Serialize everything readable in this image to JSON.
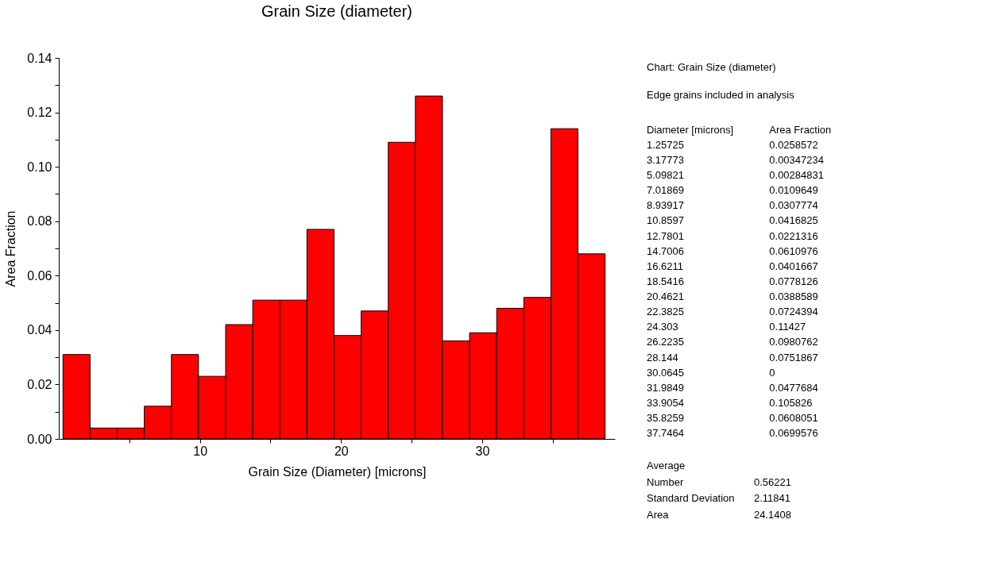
{
  "chart_data": {
    "type": "histogram",
    "title": "Grain Size (diameter)",
    "xlabel": "Grain Size (Diameter) [microns]",
    "ylabel": "Area Fraction",
    "bins": [
      0.297,
      2.217,
      4.138,
      6.058,
      7.979,
      9.899,
      11.82,
      13.74,
      15.661,
      17.581,
      19.502,
      21.422,
      23.343,
      25.263,
      27.184,
      29.104,
      31.025,
      32.945,
      34.866,
      36.786,
      38.707
    ],
    "values": [
      0.031,
      0.004,
      0.004,
      0.012,
      0.031,
      0.023,
      0.042,
      0.051,
      0.051,
      0.077,
      0.038,
      0.047,
      0.109,
      0.126,
      0.036,
      0.039,
      0.048,
      0.052,
      0.114,
      0.068
    ],
    "color": "#ff0000",
    "xlim": [
      0,
      39.4
    ],
    "ylim": [
      0,
      0.14
    ],
    "xticks": [
      {
        "value": 5,
        "label": null
      },
      10,
      {
        "value": 15,
        "label": null
      },
      20,
      {
        "value": 25,
        "label": null
      },
      30,
      {
        "value": 35,
        "label": null
      }
    ],
    "yticks": [
      {
        "value": 0,
        "label": "0.00"
      },
      {
        "value": 0.01,
        "label": null
      },
      {
        "value": 0.02,
        "label": "0.02"
      },
      {
        "value": 0.03,
        "label": null
      },
      {
        "value": 0.04,
        "label": "0.04"
      },
      {
        "value": 0.05,
        "label": null
      },
      {
        "value": 0.06,
        "label": "0.06"
      },
      {
        "value": 0.07,
        "label": null
      },
      {
        "value": 0.08,
        "label": "0.08"
      },
      {
        "value": 0.09,
        "label": null
      },
      {
        "value": 0.1,
        "label": "0.10"
      },
      {
        "value": 0.11,
        "label": null
      },
      {
        "value": 0.12,
        "label": "0.12"
      },
      {
        "value": 0.13,
        "label": null
      },
      {
        "value": 0.14,
        "label": "0.14"
      }
    ],
    "grid": false,
    "annotations": [
      "Chart:  Grain Size (diameter)",
      "Edge grains included in analysis",
      "Diameter [microns]",
      "Area Fraction",
      "1.25725",
      "0.0258572",
      "3.17773",
      "0.00347234",
      "5.09821",
      "0.00284831",
      "7.01869",
      "0.0109649",
      "8.93917",
      "0.0307774",
      "10.8597",
      "0.0416825",
      "12.7801",
      "0.0221316",
      "14.7006",
      "0.0610976",
      "16.6211",
      "0.0401667",
      "18.5416",
      "0.0778126",
      "20.4621",
      "0.0388589",
      "22.3825",
      "0.0724394",
      "24.303",
      "0.11427",
      "26.2235",
      "0.0980762",
      "28.144",
      "0.0751867",
      "30.0645",
      "0",
      "31.9849",
      "0.0477684",
      "33.9054",
      "0.105826",
      "35.8259",
      "0.0608051",
      "37.7464",
      "0.0699576",
      "Average",
      "Number",
      "0.56221",
      "Standard Deviation",
      "2.11841",
      "Area",
      "24.1408"
    ]
  }
}
